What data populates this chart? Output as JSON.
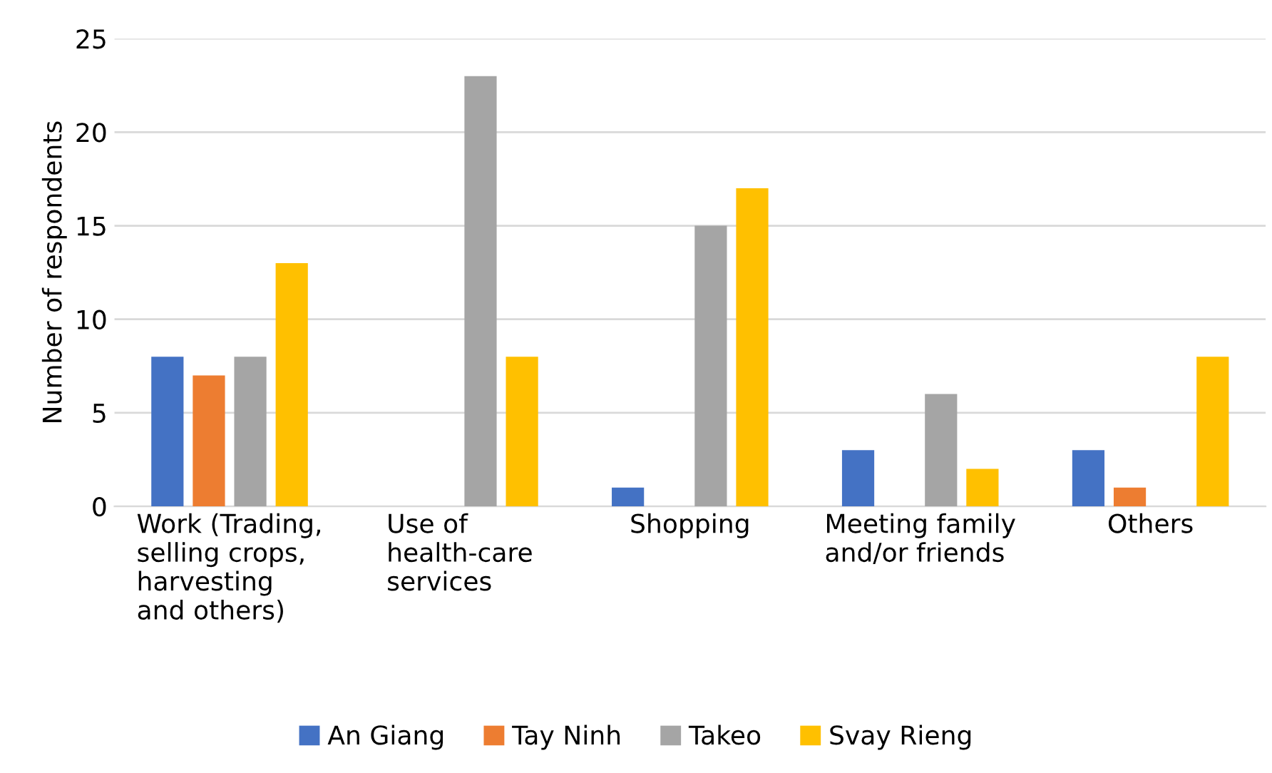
{
  "chart_data": {
    "type": "bar",
    "ylabel": "Number of respondents",
    "categories": [
      "Work (Trading,\nselling crops,\nharvesting\nand others)",
      "Use of\nhealth-care\nservices",
      "Shopping",
      "Meeting family\nand/or friends",
      "Others"
    ],
    "series": [
      {
        "name": "An Giang",
        "color": "#4472c4",
        "values": [
          8,
          0,
          1,
          3,
          3
        ]
      },
      {
        "name": "Tay Ninh",
        "color": "#ed7d31",
        "values": [
          7,
          0,
          0,
          0,
          1
        ]
      },
      {
        "name": "Takeo",
        "color": "#a5a5a5",
        "values": [
          8,
          23,
          15,
          6,
          0
        ]
      },
      {
        "name": "Svay Rieng",
        "color": "#ffc000",
        "values": [
          13,
          8,
          17,
          2,
          8
        ]
      }
    ],
    "ylim": [
      0,
      25
    ],
    "yticks": [
      0,
      5,
      10,
      15,
      20,
      25
    ],
    "grid": "y",
    "legend": "bottom"
  }
}
